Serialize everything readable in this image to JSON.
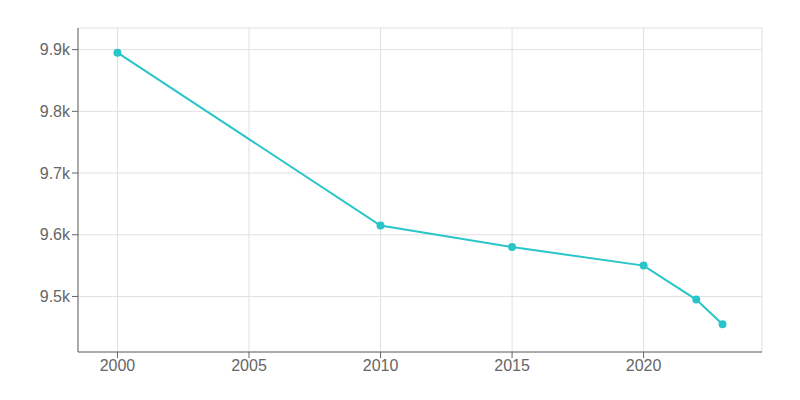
{
  "chart_data": {
    "type": "line",
    "x": [
      2000,
      2010,
      2015,
      2020,
      2022,
      2023
    ],
    "values": [
      9895,
      9615,
      9580,
      9550,
      9495,
      9455
    ],
    "color": "#29c5c8",
    "marker": "circle",
    "xlim": [
      1998.5,
      2024.5
    ],
    "ylim": [
      9410,
      9935
    ],
    "xticks": [
      2000,
      2005,
      2010,
      2015,
      2020
    ],
    "yticks": [
      {
        "value": 9500,
        "label": "9.5k"
      },
      {
        "value": 9600,
        "label": "9.6k"
      },
      {
        "value": 9700,
        "label": "9.7k"
      },
      {
        "value": 9800,
        "label": "9.8k"
      },
      {
        "value": 9900,
        "label": "9.9k"
      }
    ],
    "grid": true
  }
}
